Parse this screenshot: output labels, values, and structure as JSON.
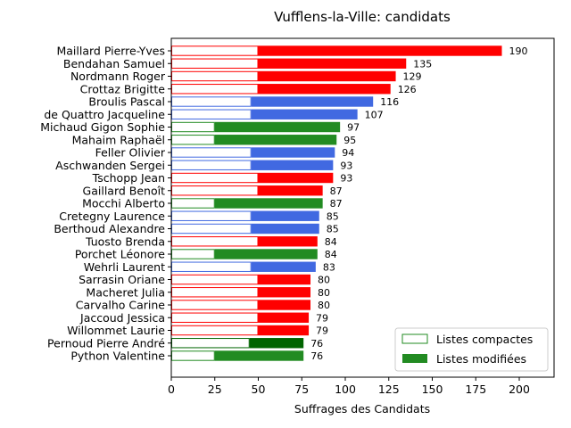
{
  "chart_data": {
    "type": "bar",
    "orientation": "horizontal",
    "stacked": true,
    "title": "Vufflens-la-Ville: candidats",
    "xlabel": "Suffrages des Candidats",
    "ylabel": "",
    "xlim": [
      0,
      220
    ],
    "xticks": [
      0,
      25,
      50,
      75,
      100,
      125,
      150,
      175,
      200
    ],
    "grid": false,
    "legend_position": "bottom-right",
    "legend": [
      {
        "label": "Listes compactes",
        "style": "outline",
        "color": "#228b22"
      },
      {
        "label": "Listes modifiées",
        "style": "filled",
        "color": "#228b22"
      }
    ],
    "series_names": [
      "Listes compactes",
      "Listes modifiées"
    ],
    "colors": {
      "red": "#ff0000",
      "blue": "#4169e1",
      "green": "#228b22",
      "darkgreen": "#006400"
    },
    "candidates": [
      {
        "name": "Maillard Pierre-Yves",
        "compact": 50,
        "modified": 140,
        "total": 190,
        "color": "red"
      },
      {
        "name": "Bendahan Samuel",
        "compact": 50,
        "modified": 85,
        "total": 135,
        "color": "red"
      },
      {
        "name": "Nordmann Roger",
        "compact": 50,
        "modified": 79,
        "total": 129,
        "color": "red"
      },
      {
        "name": "Crottaz Brigitte",
        "compact": 50,
        "modified": 76,
        "total": 126,
        "color": "red"
      },
      {
        "name": "Broulis Pascal",
        "compact": 46,
        "modified": 70,
        "total": 116,
        "color": "blue"
      },
      {
        "name": "de Quattro Jacqueline",
        "compact": 46,
        "modified": 61,
        "total": 107,
        "color": "blue"
      },
      {
        "name": "Michaud Gigon Sophie",
        "compact": 25,
        "modified": 72,
        "total": 97,
        "color": "green"
      },
      {
        "name": "Mahaim Raphaël",
        "compact": 25,
        "modified": 70,
        "total": 95,
        "color": "green"
      },
      {
        "name": "Feller Olivier",
        "compact": 46,
        "modified": 48,
        "total": 94,
        "color": "blue"
      },
      {
        "name": "Aschwanden Sergei",
        "compact": 46,
        "modified": 47,
        "total": 93,
        "color": "blue"
      },
      {
        "name": "Tschopp Jean",
        "compact": 50,
        "modified": 43,
        "total": 93,
        "color": "red"
      },
      {
        "name": "Gaillard Benoît",
        "compact": 50,
        "modified": 37,
        "total": 87,
        "color": "red"
      },
      {
        "name": "Mocchi Alberto",
        "compact": 25,
        "modified": 62,
        "total": 87,
        "color": "green"
      },
      {
        "name": "Cretegny Laurence",
        "compact": 46,
        "modified": 39,
        "total": 85,
        "color": "blue"
      },
      {
        "name": "Berthoud Alexandre",
        "compact": 46,
        "modified": 39,
        "total": 85,
        "color": "blue"
      },
      {
        "name": "Tuosto Brenda",
        "compact": 50,
        "modified": 34,
        "total": 84,
        "color": "red"
      },
      {
        "name": "Porchet Léonore",
        "compact": 25,
        "modified": 59,
        "total": 84,
        "color": "green"
      },
      {
        "name": "Wehrli Laurent",
        "compact": 46,
        "modified": 37,
        "total": 83,
        "color": "blue"
      },
      {
        "name": "Sarrasin Oriane",
        "compact": 50,
        "modified": 30,
        "total": 80,
        "color": "red"
      },
      {
        "name": "Macheret Julia",
        "compact": 50,
        "modified": 30,
        "total": 80,
        "color": "red"
      },
      {
        "name": "Carvalho Carine",
        "compact": 50,
        "modified": 30,
        "total": 80,
        "color": "red"
      },
      {
        "name": "Jaccoud Jessica",
        "compact": 50,
        "modified": 29,
        "total": 79,
        "color": "red"
      },
      {
        "name": "Willommet Laurie",
        "compact": 50,
        "modified": 29,
        "total": 79,
        "color": "red"
      },
      {
        "name": "Pernoud Pierre André",
        "compact": 45,
        "modified": 31,
        "total": 76,
        "color": "darkgreen"
      },
      {
        "name": "Python Valentine",
        "compact": 25,
        "modified": 51,
        "total": 76,
        "color": "green"
      }
    ]
  }
}
